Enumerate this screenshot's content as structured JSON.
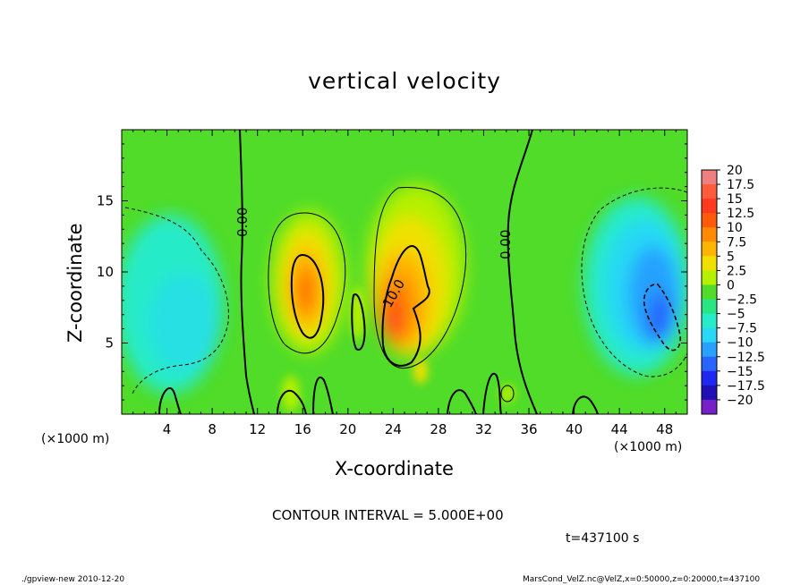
{
  "chart_data": {
    "type": "heatmap",
    "title": "vertical velocity",
    "xlabel": "X-coordinate",
    "ylabel": "Z-coordinate",
    "x_unit_left": "(×1000 m)",
    "x_unit_right": "(×1000 m)",
    "xlim": [
      0,
      50
    ],
    "ylim": [
      0,
      20
    ],
    "x_ticks": [
      "4",
      "8",
      "12",
      "16",
      "20",
      "24",
      "28",
      "32",
      "36",
      "40",
      "44",
      "48"
    ],
    "x_tick_values": [
      4,
      8,
      12,
      16,
      20,
      24,
      28,
      32,
      36,
      40,
      44,
      48
    ],
    "y_ticks": [
      "5",
      "10",
      "15"
    ],
    "y_tick_values": [
      5,
      10,
      15
    ],
    "colorbar": {
      "labels": [
        "20",
        "17.5",
        "15",
        "12.5",
        "10",
        "7.5",
        "5",
        "2.5",
        "0",
        "-2.5",
        "-5",
        "-7.5",
        "-10",
        "-12.5",
        "-15",
        "-17.5",
        "-20"
      ],
      "levels": [
        20,
        17.5,
        15,
        12.5,
        10,
        7.5,
        5,
        2.5,
        0,
        -2.5,
        -5,
        -7.5,
        -10,
        -12.5,
        -15,
        -17.5,
        -20
      ],
      "colors": [
        "#f08080",
        "#ff5c3c",
        "#ff3a1e",
        "#ff5a0a",
        "#ff8c00",
        "#ffb400",
        "#f0e000",
        "#b4f000",
        "#50dc28",
        "#28e684",
        "#28ebc8",
        "#28d8f5",
        "#28a0ff",
        "#2864ff",
        "#1e28f0",
        "#1e10b4",
        "#7820c8"
      ]
    },
    "contour_labels": [
      "0.00",
      "0.00",
      "10.0"
    ],
    "features": [
      {
        "kind": "updraft",
        "x_center": 16.5,
        "z_center": 8.5,
        "peak": 12.5
      },
      {
        "kind": "updraft",
        "x_center": 24.5,
        "z_center": 7.5,
        "peak": 14
      },
      {
        "kind": "downdraft",
        "x_center": 47,
        "z_center": 7,
        "peak": -12
      },
      {
        "kind": "downdraft",
        "x_center": 6,
        "z_center": 8,
        "peak": -6
      }
    ]
  },
  "contour_interval": "CONTOUR INTERVAL = 5.000E+00",
  "time_label": "t=437100  s",
  "footer_left": "./gpview-new  2010-12-20",
  "footer_right": "MarsCond_VelZ.nc@VelZ,x=0:50000,z=0:20000,t=437100"
}
